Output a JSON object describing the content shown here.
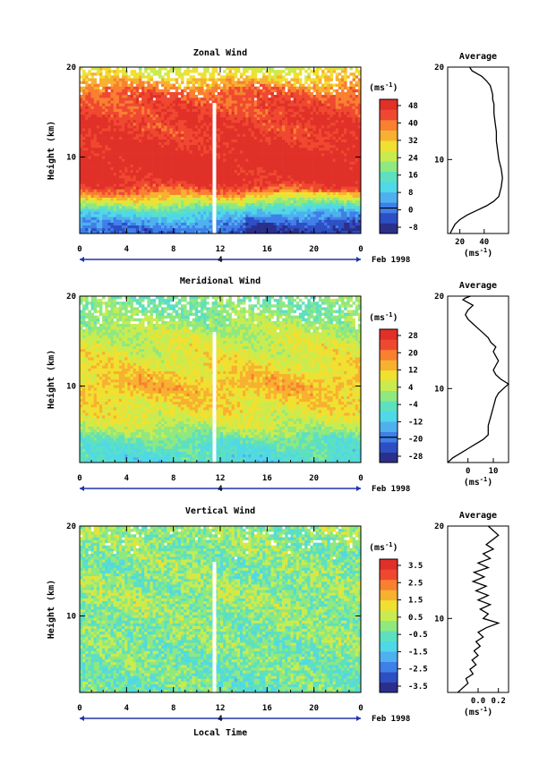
{
  "figure": {
    "date_label": "Feb 1998",
    "shared_xlabel": "Local Time",
    "unit_label_main": "(ms",
    "unit_label_exp": "-1",
    "unit_label_close": ")",
    "avg_title": "Average",
    "y_label": "Height (km)",
    "x_ticks": [
      "0",
      "4",
      "8",
      "12",
      "16",
      "20",
      "0"
    ],
    "day_marker": "4",
    "y_ticks": [
      "20",
      "10"
    ]
  },
  "chart_data": [
    {
      "type": "heatmap",
      "title": "Zonal Wind",
      "xlabel": "",
      "ylabel": "Height (km)",
      "xlim": [
        0,
        24
      ],
      "ylim": [
        1.5,
        20
      ],
      "x_ticks": [
        0,
        4,
        8,
        12,
        16,
        20,
        24
      ],
      "y_ticks": [
        10,
        20
      ],
      "colorbar_ticks": [
        "48",
        "40",
        "32",
        "24",
        "16",
        "8",
        "0",
        "-8"
      ],
      "colorbar_range": [
        -8,
        52
      ],
      "colorbar_zero_line": 0,
      "colors": [
        "#2b2f8c",
        "#2d4fc4",
        "#3f7fe8",
        "#4fb0f0",
        "#4fd8e8",
        "#5de0c0",
        "#8fe880",
        "#c8ec50",
        "#f0e030",
        "#f8b030",
        "#f88030",
        "#f04830",
        "#e03028"
      ],
      "height_profile": [
        [
          2,
          2
        ],
        [
          3,
          8
        ],
        [
          4,
          16
        ],
        [
          5,
          28
        ],
        [
          6,
          40
        ],
        [
          7,
          48
        ],
        [
          8,
          51
        ],
        [
          9,
          52
        ],
        [
          10,
          52
        ],
        [
          11,
          50
        ],
        [
          12,
          48
        ],
        [
          13,
          47
        ],
        [
          14,
          48
        ],
        [
          15,
          46
        ],
        [
          16,
          45
        ],
        [
          17,
          44
        ],
        [
          18,
          38
        ],
        [
          19,
          32
        ],
        [
          20,
          28
        ]
      ],
      "average_profile": {
        "x": [
          12,
          14,
          16,
          20,
          26,
          34,
          42,
          48,
          52,
          54,
          55,
          54,
          52,
          51,
          50,
          50,
          49,
          48,
          48,
          47,
          47,
          46,
          45,
          42,
          38,
          34,
          30,
          28
        ],
        "y": [
          2,
          2.5,
          3,
          3.5,
          4,
          4.5,
          5,
          5.5,
          6,
          7,
          8,
          9,
          10,
          11,
          12,
          13,
          14,
          15,
          16,
          16.5,
          17,
          17.5,
          18,
          18.5,
          19,
          19.3,
          19.6,
          20
        ],
        "xlim": [
          10,
          60
        ],
        "ylim": [
          2,
          20
        ],
        "x_ticks": [
          20,
          40
        ],
        "y_ticks": [
          10,
          20
        ],
        "xlabel": "(ms-1)"
      }
    },
    {
      "type": "heatmap",
      "title": "Meridional Wind",
      "xlabel": "",
      "ylabel": "Height (km)",
      "xlim": [
        0,
        24
      ],
      "ylim": [
        1.5,
        20
      ],
      "x_ticks": [
        0,
        4,
        8,
        12,
        16,
        20,
        24
      ],
      "y_ticks": [
        10,
        20
      ],
      "colorbar_ticks": [
        "28",
        "20",
        "12",
        "4",
        "-4",
        "-12",
        "-20",
        "-28"
      ],
      "colorbar_range": [
        -32,
        32
      ],
      "colorbar_zero_line": 0,
      "colors": [
        "#2b2f8c",
        "#2d4fc4",
        "#3f7fe8",
        "#4fb0f0",
        "#4fd8e8",
        "#5de0c0",
        "#8fe880",
        "#c8ec50",
        "#f0e030",
        "#f8b030",
        "#f88030",
        "#f04830",
        "#e03028"
      ],
      "height_profile": [
        [
          2,
          -8
        ],
        [
          3,
          -6
        ],
        [
          4,
          -4
        ],
        [
          5,
          2
        ],
        [
          6,
          6
        ],
        [
          7,
          8
        ],
        [
          8,
          10
        ],
        [
          9,
          12
        ],
        [
          10,
          14
        ],
        [
          11,
          12
        ],
        [
          12,
          10
        ],
        [
          13,
          8
        ],
        [
          14,
          7
        ],
        [
          15,
          6
        ],
        [
          16,
          4
        ],
        [
          17,
          2
        ],
        [
          18,
          0
        ],
        [
          19,
          -2
        ],
        [
          20,
          -1
        ]
      ],
      "average_profile": {
        "x": [
          -8,
          -6,
          -3,
          0,
          3,
          6,
          8,
          8,
          9,
          10,
          11,
          12,
          14,
          16,
          13,
          11,
          10,
          11,
          12,
          11,
          10,
          11,
          9,
          8,
          6,
          4,
          2,
          0,
          -1,
          0,
          2,
          0,
          -2,
          -1,
          1
        ],
        "y": [
          2,
          2.5,
          3,
          3.5,
          4,
          4.5,
          5,
          6,
          7,
          8,
          9,
          9.5,
          10,
          10.5,
          11,
          11.5,
          12,
          12.5,
          13,
          13.5,
          14,
          14.5,
          15,
          15.5,
          16,
          16.5,
          17,
          17.5,
          18,
          18.5,
          19,
          19.3,
          19.6,
          19.8,
          20
        ],
        "xlim": [
          -8,
          16
        ],
        "ylim": [
          2,
          20
        ],
        "x_ticks": [
          0,
          10
        ],
        "y_ticks": [
          10,
          20
        ],
        "xlabel": "(ms-1)"
      }
    },
    {
      "type": "heatmap",
      "title": "Vertical Wind",
      "xlabel": "Local Time",
      "ylabel": "Height (km)",
      "xlim": [
        0,
        24
      ],
      "ylim": [
        1.5,
        20
      ],
      "x_ticks": [
        0,
        4,
        8,
        12,
        16,
        20,
        24
      ],
      "y_ticks": [
        10,
        20
      ],
      "colorbar_ticks": [
        "3.5",
        "2.5",
        "1.5",
        "0.5",
        "-0.5",
        "-1.5",
        "-2.5",
        "-3.5"
      ],
      "colorbar_range": [
        -4,
        4
      ],
      "colorbar_zero_line": null,
      "colors": [
        "#2b2f8c",
        "#2d4fc4",
        "#3f7fe8",
        "#4fb0f0",
        "#4fd8e8",
        "#5de0c0",
        "#8fe880",
        "#c8ec50",
        "#f0e030",
        "#f8b030",
        "#f88030",
        "#f04830",
        "#e03028"
      ],
      "height_profile": [
        [
          2,
          -0.4
        ],
        [
          4,
          -0.3
        ],
        [
          6,
          -0.2
        ],
        [
          8,
          -0.1
        ],
        [
          10,
          0
        ],
        [
          12,
          0.1
        ],
        [
          14,
          0
        ],
        [
          16,
          -0.1
        ],
        [
          18,
          0
        ],
        [
          20,
          0.1
        ]
      ],
      "average_profile": {
        "x": [
          -0.2,
          -0.15,
          -0.1,
          -0.12,
          -0.05,
          -0.08,
          -0.02,
          -0.06,
          0.0,
          -0.04,
          0.02,
          -0.02,
          0.05,
          0.0,
          0.08,
          0.2,
          0.05,
          0.1,
          0.02,
          0.12,
          0.0,
          0.1,
          -0.02,
          0.08,
          -0.05,
          0.06,
          -0.04,
          0.1,
          0.0,
          0.12,
          0.05,
          0.15,
          0.08,
          0.2,
          0.1
        ],
        "y": [
          2,
          2.5,
          3,
          3.5,
          4,
          4.5,
          5,
          5.5,
          6,
          6.5,
          7,
          7.5,
          8,
          8.5,
          9,
          9.5,
          10,
          10.5,
          11,
          11.5,
          12,
          12.5,
          13,
          13.5,
          14,
          14.5,
          15,
          15.5,
          16,
          16.5,
          17,
          17.5,
          18,
          19,
          20
        ],
        "xlim": [
          -0.3,
          0.3
        ],
        "ylim": [
          2,
          20
        ],
        "x_ticks": [
          0.0,
          0.2
        ],
        "x_tick_labels": [
          "0.0",
          "0.2"
        ],
        "y_ticks": [
          10,
          20
        ],
        "xlabel": "(ms-1)"
      }
    }
  ]
}
